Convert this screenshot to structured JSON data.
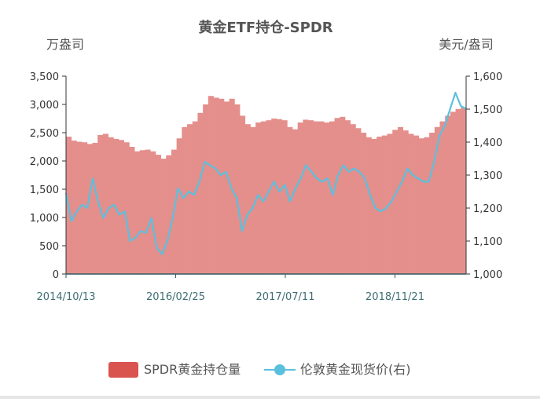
{
  "chart_data": {
    "type": "area+line",
    "title": "黄金ETF持仓-SPDR",
    "left_axis_unit": "万盎司",
    "right_axis_unit": "美元/盎司",
    "left_ylim": [
      0,
      3500
    ],
    "left_ticks": [
      "0",
      "500",
      "1,000",
      "1,500",
      "2,000",
      "2,500",
      "3,000",
      "3,500"
    ],
    "right_ylim": [
      1000,
      1600
    ],
    "right_ticks": [
      "1,000",
      "1,100",
      "1,200",
      "1,300",
      "1,400",
      "1,500",
      "1,600"
    ],
    "x_tick_labels": [
      "2014/10/13",
      "2016/02/25",
      "2017/07/11",
      "2018/11/21"
    ],
    "grid": false,
    "legend_position": "bottom",
    "series": [
      {
        "name": "SPDR黄金持仓量",
        "type": "area",
        "axis": "left",
        "color": "#e48f8c",
        "legend_color": "#d9534f",
        "values": [
          2430,
          2360,
          2340,
          2330,
          2300,
          2320,
          2460,
          2480,
          2420,
          2390,
          2370,
          2330,
          2250,
          2170,
          2190,
          2200,
          2170,
          2110,
          2040,
          2100,
          2200,
          2400,
          2600,
          2650,
          2700,
          2850,
          3000,
          3150,
          3120,
          3100,
          3050,
          3100,
          3000,
          2800,
          2650,
          2600,
          2680,
          2700,
          2720,
          2750,
          2740,
          2720,
          2600,
          2560,
          2680,
          2730,
          2720,
          2700,
          2700,
          2680,
          2700,
          2760,
          2780,
          2720,
          2650,
          2580,
          2500,
          2420,
          2390,
          2430,
          2450,
          2480,
          2550,
          2600,
          2540,
          2480,
          2450,
          2400,
          2420,
          2500,
          2600,
          2700,
          2800,
          2870,
          2920,
          2950
        ]
      },
      {
        "name": "伦敦黄金现货价(右)",
        "type": "line",
        "axis": "right",
        "color": "#5bc0de",
        "values": [
          1245,
          1160,
          1190,
          1210,
          1200,
          1290,
          1220,
          1170,
          1200,
          1210,
          1180,
          1190,
          1100,
          1110,
          1130,
          1125,
          1170,
          1080,
          1060,
          1100,
          1170,
          1260,
          1230,
          1250,
          1240,
          1280,
          1340,
          1330,
          1320,
          1300,
          1310,
          1260,
          1230,
          1130,
          1180,
          1200,
          1240,
          1220,
          1250,
          1280,
          1250,
          1270,
          1220,
          1260,
          1290,
          1330,
          1310,
          1290,
          1280,
          1290,
          1240,
          1300,
          1330,
          1310,
          1320,
          1310,
          1290,
          1240,
          1200,
          1190,
          1200,
          1220,
          1250,
          1280,
          1320,
          1300,
          1290,
          1280,
          1280,
          1340,
          1420,
          1450,
          1500,
          1550,
          1510,
          1500
        ]
      }
    ]
  }
}
